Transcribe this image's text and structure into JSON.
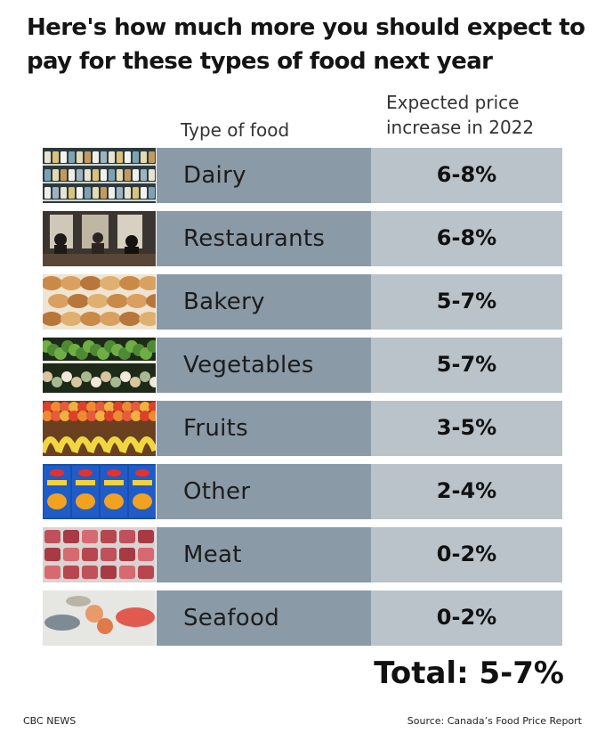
{
  "title": "Here's how much more you should expect to pay for these types of food next year",
  "column_headers": {
    "type": "Type of food",
    "increase": "Expected price increase in 2022"
  },
  "rows": [
    {
      "label": "Dairy",
      "value": "6-8%",
      "image": "dairy-shelf-image"
    },
    {
      "label": "Restaurants",
      "value": "6-8%",
      "image": "restaurant-interior-image"
    },
    {
      "label": "Bakery",
      "value": "5-7%",
      "image": "bakery-pastries-image"
    },
    {
      "label": "Vegetables",
      "value": "5-7%",
      "image": "vegetable-display-image"
    },
    {
      "label": "Fruits",
      "value": "3-5%",
      "image": "fruit-display-image"
    },
    {
      "label": "Other",
      "value": "2-4%",
      "image": "macaroni-and-cheese-boxes-image"
    },
    {
      "label": "Meat",
      "value": "0-2%",
      "image": "meat-counter-image"
    },
    {
      "label": "Seafood",
      "value": "0-2%",
      "image": "seafood-display-image"
    }
  ],
  "total": "Total: 5-7%",
  "footer": {
    "left": "CBC NEWS",
    "right": "Source: Canada’s Food Price Report"
  },
  "colors": {
    "label_cell": "#8a9aa6",
    "value_cell": "#b9c3c9",
    "background": "#ffffff"
  },
  "chart_data": {
    "type": "table",
    "title": "Here's how much more you should expect to pay for these types of food next year",
    "columns": [
      "Type of food",
      "Expected price increase in 2022"
    ],
    "categories": [
      "Dairy",
      "Restaurants",
      "Bakery",
      "Vegetables",
      "Fruits",
      "Other",
      "Meat",
      "Seafood"
    ],
    "values": [
      "6-8%",
      "6-8%",
      "5-7%",
      "5-7%",
      "3-5%",
      "2-4%",
      "0-2%",
      "0-2%"
    ],
    "ranges_percent": [
      [
        6,
        8
      ],
      [
        6,
        8
      ],
      [
        5,
        7
      ],
      [
        5,
        7
      ],
      [
        3,
        5
      ],
      [
        2,
        4
      ],
      [
        0,
        2
      ],
      [
        0,
        2
      ]
    ],
    "total": "Total: 5-7%",
    "source": "Source: Canada’s Food Price Report"
  }
}
